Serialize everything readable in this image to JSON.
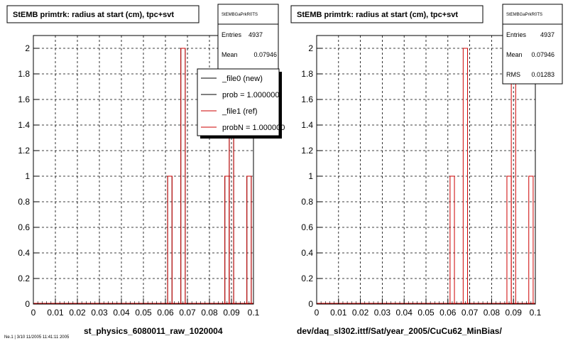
{
  "chart_data": [
    {
      "type": "bar",
      "title": "StEMB primtrk: radius at start (cm), tpc+svt",
      "xlabel": "st_physics_6080011_raw_1020004",
      "ylabel": "",
      "xlim": [
        0,
        0.1
      ],
      "ylim": [
        0,
        2.1
      ],
      "grid": true,
      "x_ticks": [
        "0",
        "0.01",
        "0.02",
        "0.03",
        "0.04",
        "0.05",
        "0.06",
        "0.07",
        "0.08",
        "0.09",
        "0.1"
      ],
      "y_ticks": [
        "0",
        "0.2",
        "0.4",
        "0.6",
        "0.8",
        "1",
        "1.2",
        "1.4",
        "1.6",
        "1.8",
        "2"
      ],
      "series": [
        {
          "name": "_file0 (new)",
          "color": "#000000",
          "bins": [
            {
              "x": 0.062,
              "y": 1
            },
            {
              "x": 0.068,
              "y": 2
            },
            {
              "x": 0.088,
              "y": 1
            },
            {
              "x": 0.09,
              "y": 2
            },
            {
              "x": 0.098,
              "y": 1
            }
          ]
        },
        {
          "name": "_file1 (ref)",
          "color": "#cc0000",
          "bins": [
            {
              "x": 0.062,
              "y": 1
            },
            {
              "x": 0.068,
              "y": 2
            },
            {
              "x": 0.088,
              "y": 1
            },
            {
              "x": 0.09,
              "y": 2
            },
            {
              "x": 0.098,
              "y": 1
            }
          ]
        }
      ],
      "stats": {
        "name": "StEMBGaPrkR0TS",
        "entries_label": "Entries",
        "entries": "4937",
        "mean_label": "Mean",
        "mean": "0.07946"
      },
      "legend": {
        "placement": "top-right",
        "entries": [
          {
            "label": "_file0 (new)",
            "color": "#000000"
          },
          {
            "label": "prob = 1.000000",
            "color": "#000000"
          },
          {
            "label": "_file1 (ref)",
            "color": "#cc0000"
          },
          {
            "label": "probN = 1.000000",
            "color": "#cc0000"
          }
        ]
      }
    },
    {
      "type": "bar",
      "title": "StEMB primtrk: radius at start (cm), tpc+svt",
      "xlabel": "dev/daq_sl302.ittf/Sat/year_2005/CuCu62_MinBias/",
      "ylabel": "",
      "xlim": [
        0,
        0.1
      ],
      "ylim": [
        0,
        2.1
      ],
      "grid": true,
      "x_ticks": [
        "0",
        "0.01",
        "0.02",
        "0.03",
        "0.04",
        "0.05",
        "0.06",
        "0.07",
        "0.08",
        "0.09",
        "0.1"
      ],
      "y_ticks": [
        "0",
        "0.2",
        "0.4",
        "0.6",
        "0.8",
        "1",
        "1.2",
        "1.4",
        "1.6",
        "1.8",
        "2"
      ],
      "series": [
        {
          "name": "",
          "color": "#cc0000",
          "bins": [
            {
              "x": 0.062,
              "y": 1
            },
            {
              "x": 0.068,
              "y": 2
            },
            {
              "x": 0.088,
              "y": 1
            },
            {
              "x": 0.09,
              "y": 2
            },
            {
              "x": 0.098,
              "y": 1
            }
          ]
        }
      ],
      "stats": {
        "name": "StEMBGaPrkR0TS",
        "entries_label": "Entries",
        "entries": "4937",
        "mean_label": "Mean",
        "mean": "0.07946",
        "rms_label": "RMS",
        "rms": "0.01283"
      }
    }
  ],
  "footer_text": "Ne.1 | 3/10 11/2005 11:41:11 2005"
}
